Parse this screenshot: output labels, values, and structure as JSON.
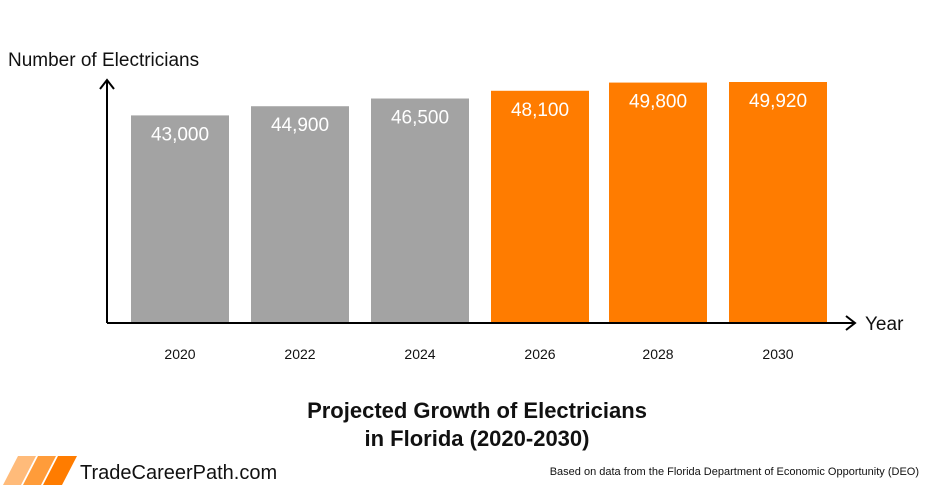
{
  "chart_data": {
    "type": "bar",
    "title_line1": "Projected Growth of Electricians",
    "title_line2": "in Florida (2020-2030)",
    "xlabel": "Year",
    "ylabel": "Number of Electricians",
    "categories": [
      "2020",
      "2022",
      "2024",
      "2026",
      "2028",
      "2030"
    ],
    "values": [
      43000,
      44900,
      46500,
      48100,
      49800,
      49920
    ],
    "value_labels": [
      "43,000",
      "44,900",
      "46,500",
      "48,100",
      "49,800",
      "49,920"
    ],
    "bar_colors": [
      "#a3a3a3",
      "#a3a3a3",
      "#a3a3a3",
      "#ff7c00",
      "#ff7c00",
      "#ff7c00"
    ],
    "ylim": [
      0,
      50000
    ],
    "grid": false
  },
  "footer": {
    "brand": "TradeCareerPath.com",
    "source": "Based on data from the Florida Department of Economic Opportunity (DEO)",
    "logo_colors": [
      "#ffbb7a",
      "#ff9c3a",
      "#ff7c00"
    ]
  }
}
